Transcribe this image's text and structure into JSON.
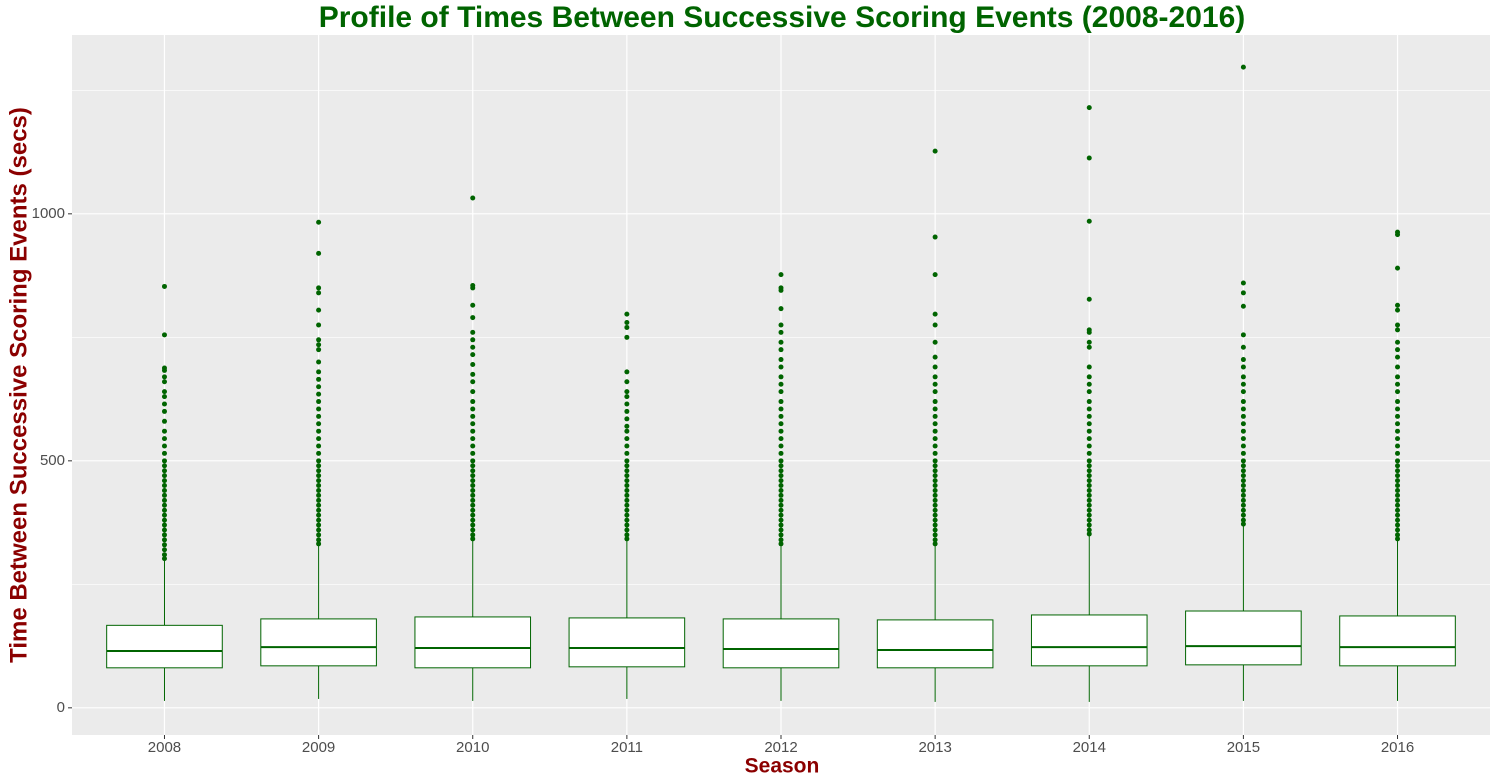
{
  "chart_data": {
    "type": "box",
    "title": "Profile of Times Between Successive Scoring Events (2008-2016)",
    "x_label": "Season",
    "y_label": "Time Between Successive Scoring Events (secs)",
    "categories": [
      "2008",
      "2009",
      "2010",
      "2011",
      "2012",
      "2013",
      "2014",
      "2015",
      "2016"
    ],
    "color": "#006400",
    "box_fill": "#ffffff",
    "background": "#ebebeb",
    "grid": true,
    "ylim": [
      -55,
      1362
    ],
    "yticks": [
      0,
      500,
      1000
    ],
    "y_minor_ticks": [
      250,
      750,
      1250
    ],
    "boxes": [
      {
        "min": 14,
        "q1": 81,
        "median": 115,
        "q3": 167,
        "max": 298,
        "outliers": [
          302,
          310,
          320,
          330,
          340,
          350,
          360,
          370,
          380,
          390,
          400,
          410,
          420,
          430,
          440,
          450,
          460,
          470,
          480,
          490,
          500,
          515,
          530,
          545,
          560,
          580,
          600,
          615,
          630,
          640,
          660,
          670,
          683,
          688,
          755,
          853
        ]
      },
      {
        "min": 18,
        "q1": 85,
        "median": 123,
        "q3": 180,
        "max": 328,
        "outliers": [
          332,
          340,
          350,
          360,
          370,
          380,
          390,
          400,
          410,
          420,
          430,
          440,
          450,
          460,
          470,
          480,
          490,
          500,
          515,
          530,
          545,
          560,
          575,
          590,
          605,
          620,
          635,
          650,
          665,
          680,
          700,
          725,
          735,
          745,
          775,
          805,
          840,
          850,
          920,
          983
        ]
      },
      {
        "min": 14,
        "q1": 81,
        "median": 121,
        "q3": 184,
        "max": 338,
        "outliers": [
          342,
          350,
          360,
          370,
          380,
          390,
          400,
          410,
          420,
          430,
          440,
          450,
          460,
          470,
          480,
          490,
          500,
          515,
          530,
          545,
          560,
          575,
          590,
          605,
          620,
          640,
          660,
          675,
          695,
          715,
          730,
          745,
          760,
          790,
          815,
          850,
          855,
          1032
        ]
      },
      {
        "min": 18,
        "q1": 83,
        "median": 121,
        "q3": 182,
        "max": 338,
        "outliers": [
          342,
          350,
          360,
          370,
          380,
          390,
          400,
          410,
          420,
          430,
          440,
          450,
          460,
          470,
          480,
          490,
          500,
          515,
          530,
          545,
          560,
          570,
          585,
          600,
          615,
          630,
          640,
          660,
          680,
          750,
          770,
          780,
          797
        ]
      },
      {
        "min": 14,
        "q1": 81,
        "median": 119,
        "q3": 180,
        "max": 328,
        "outliers": [
          332,
          340,
          350,
          360,
          370,
          380,
          390,
          400,
          410,
          420,
          430,
          440,
          450,
          460,
          470,
          480,
          490,
          500,
          515,
          530,
          545,
          560,
          575,
          590,
          605,
          620,
          640,
          655,
          670,
          690,
          705,
          725,
          740,
          760,
          775,
          808,
          845,
          850,
          877
        ]
      },
      {
        "min": 12,
        "q1": 81,
        "median": 117,
        "q3": 178,
        "max": 328,
        "outliers": [
          332,
          340,
          350,
          360,
          370,
          380,
          390,
          400,
          410,
          420,
          430,
          440,
          450,
          460,
          470,
          480,
          490,
          500,
          515,
          530,
          545,
          560,
          575,
          590,
          605,
          620,
          640,
          655,
          670,
          690,
          710,
          740,
          775,
          797,
          877,
          953,
          1127
        ]
      },
      {
        "min": 12,
        "q1": 85,
        "median": 123,
        "q3": 188,
        "max": 348,
        "outliers": [
          352,
          360,
          370,
          380,
          390,
          400,
          410,
          420,
          430,
          440,
          450,
          460,
          470,
          480,
          490,
          500,
          515,
          530,
          545,
          560,
          575,
          590,
          605,
          620,
          640,
          655,
          670,
          690,
          730,
          740,
          760,
          765,
          827,
          985,
          1113,
          1215
        ]
      },
      {
        "min": 14,
        "q1": 87,
        "median": 125,
        "q3": 196,
        "max": 368,
        "outliers": [
          372,
          380,
          390,
          400,
          410,
          420,
          430,
          440,
          450,
          460,
          470,
          480,
          490,
          500,
          515,
          530,
          545,
          560,
          575,
          590,
          605,
          620,
          640,
          655,
          670,
          690,
          705,
          730,
          755,
          813,
          840,
          860,
          1297
        ]
      },
      {
        "min": 14,
        "q1": 85,
        "median": 123,
        "q3": 186,
        "max": 338,
        "outliers": [
          342,
          350,
          360,
          370,
          380,
          390,
          400,
          410,
          420,
          430,
          440,
          450,
          460,
          470,
          480,
          490,
          500,
          515,
          530,
          545,
          560,
          575,
          590,
          605,
          620,
          640,
          655,
          670,
          690,
          710,
          725,
          740,
          765,
          775,
          805,
          815,
          890,
          958,
          963
        ]
      }
    ]
  }
}
